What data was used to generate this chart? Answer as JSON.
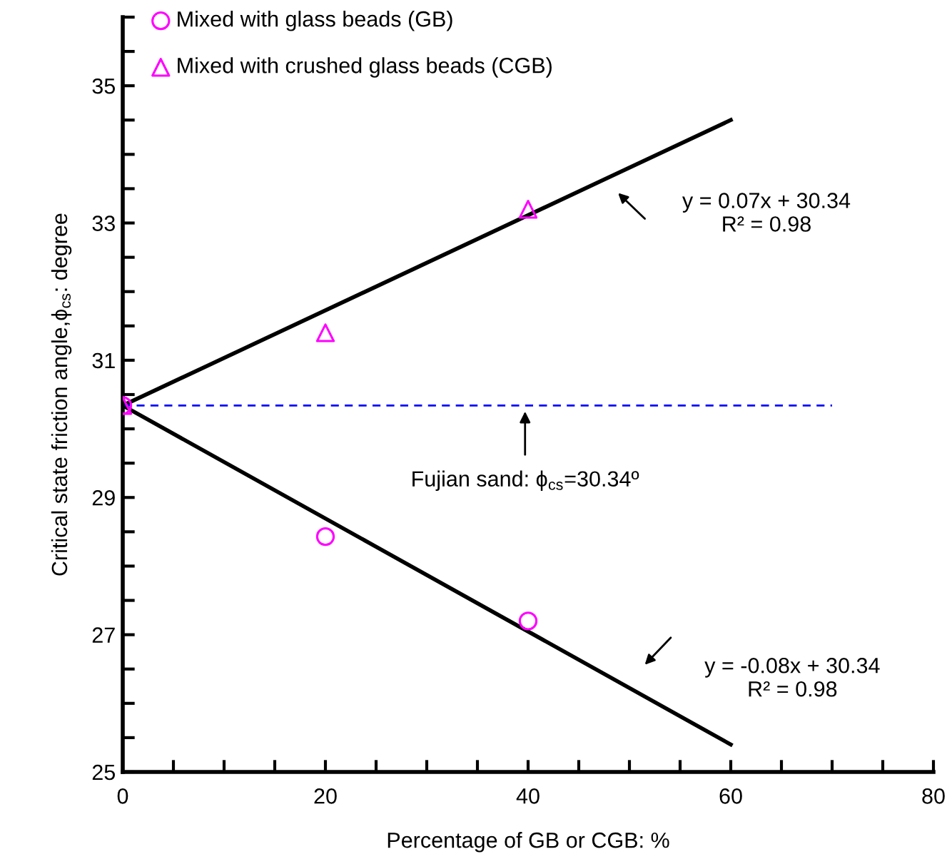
{
  "chart_data": {
    "type": "scatter",
    "xlabel": "Percentage of GB or CGB: %",
    "ylabel": "Critical state friction angle,ϕ$_{cs}$: degree",
    "xlim": [
      0,
      80
    ],
    "xticks": [
      0,
      20,
      40,
      60,
      80
    ],
    "ylim": [
      25,
      36
    ],
    "yticks": [
      25,
      27,
      29,
      31,
      33,
      35
    ],
    "grid": false,
    "legend": "top left",
    "series": [
      {
        "name": "Mixed with glass beads (GB)",
        "marker": "circle",
        "color": "#ff00ff",
        "x": [
          0,
          20,
          40
        ],
        "values": [
          30.34,
          28.43,
          27.2
        ]
      },
      {
        "name": "Mixed with crushed glass beads (CGB)",
        "marker": "triangle",
        "color": "#ff00ff",
        "x": [
          0,
          20,
          40
        ],
        "values": [
          30.34,
          31.4,
          33.2
        ]
      },
      {
        "type": "line",
        "color": "#000000",
        "line_style": "solid",
        "x": [
          0,
          60
        ],
        "values": [
          30.34,
          34.5
        ]
      },
      {
        "type": "line",
        "color": "#000000",
        "line_style": "solid",
        "x": [
          0,
          60
        ],
        "values": [
          30.34,
          25.4
        ]
      },
      {
        "type": "line",
        "color": "#0000ff",
        "line_style": "dashed",
        "x": [
          0,
          70
        ],
        "values": [
          30.34,
          30.34
        ]
      }
    ],
    "annotations": [
      "y = 0.07x + 30.34\nR² = 0.98",
      {
        "text": "Fujian sand: ϕ$_{cs}$=30.34º",
        "x": 39.7,
        "y": 30.34
      },
      "y = -0.08x + 30.34\nR² = 0.98"
    ]
  }
}
